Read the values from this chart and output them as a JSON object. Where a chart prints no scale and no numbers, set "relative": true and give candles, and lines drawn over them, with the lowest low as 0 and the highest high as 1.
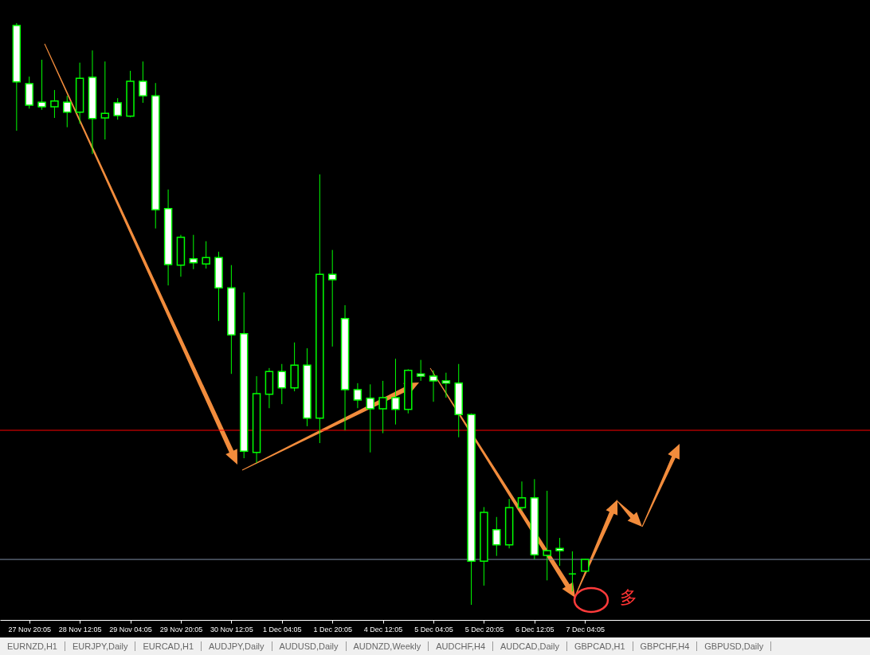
{
  "chart_data": {
    "type": "candlestick",
    "relative": true,
    "categories": [
      null,
      "27 Nov 20:05",
      null,
      null,
      null,
      "28 Nov 12:05",
      null,
      null,
      null,
      "29 Nov 04:05",
      null,
      null,
      null,
      "29 Nov 20:05",
      null,
      null,
      null,
      "30 Nov 12:05",
      null,
      null,
      null,
      "1 Dec 04:05",
      null,
      null,
      null,
      "1 Dec 20:05",
      null,
      null,
      null,
      "4 Dec 12:05",
      null,
      null,
      null,
      "5 Dec 04:05",
      null,
      null,
      null,
      "5 Dec 20:05",
      null,
      null,
      null,
      "6 Dec 12:05",
      null,
      null,
      null,
      "7 Dec 04:05"
    ],
    "ohlc": [
      [
        0.996,
        1.0,
        0.815,
        0.899
      ],
      [
        0.896,
        0.908,
        0.853,
        0.859
      ],
      [
        0.864,
        0.937,
        0.851,
        0.856
      ],
      [
        0.856,
        0.885,
        0.837,
        0.866
      ],
      [
        0.864,
        0.875,
        0.821,
        0.847
      ],
      [
        0.847,
        0.932,
        0.827,
        0.905
      ],
      [
        0.907,
        0.953,
        0.775,
        0.836
      ],
      [
        0.837,
        0.934,
        0.8,
        0.845
      ],
      [
        0.863,
        0.871,
        0.834,
        0.841
      ],
      [
        0.84,
        0.918,
        0.838,
        0.9
      ],
      [
        0.9,
        0.934,
        0.863,
        0.875
      ],
      [
        0.875,
        0.897,
        0.647,
        0.679
      ],
      [
        0.681,
        0.714,
        0.549,
        0.585
      ],
      [
        0.584,
        0.636,
        0.564,
        0.632
      ],
      [
        0.595,
        0.636,
        0.577,
        0.588
      ],
      [
        0.586,
        0.625,
        0.578,
        0.597
      ],
      [
        0.597,
        0.607,
        0.488,
        0.545
      ],
      [
        0.545,
        0.584,
        0.397,
        0.464
      ],
      [
        0.466,
        0.537,
        0.252,
        0.264
      ],
      [
        0.262,
        0.393,
        0.244,
        0.363
      ],
      [
        0.362,
        0.407,
        0.338,
        0.401
      ],
      [
        0.401,
        0.414,
        0.345,
        0.373
      ],
      [
        0.373,
        0.451,
        0.367,
        0.412
      ],
      [
        0.412,
        0.441,
        0.307,
        0.321
      ],
      [
        0.321,
        0.74,
        0.278,
        0.568
      ],
      [
        0.568,
        0.61,
        0.444,
        0.559
      ],
      [
        0.492,
        0.515,
        0.3,
        0.37
      ],
      [
        0.37,
        0.381,
        0.338,
        0.352
      ],
      [
        0.355,
        0.379,
        0.262,
        0.337
      ],
      [
        0.337,
        0.385,
        0.295,
        0.356
      ],
      [
        0.356,
        0.423,
        0.31,
        0.336
      ],
      [
        0.336,
        0.405,
        0.329,
        0.403
      ],
      [
        0.397,
        0.421,
        0.385,
        0.393
      ],
      [
        0.393,
        0.403,
        0.349,
        0.385
      ],
      [
        0.385,
        0.399,
        0.356,
        0.381
      ],
      [
        0.381,
        0.414,
        0.288,
        0.327
      ],
      [
        0.327,
        0.329,
        0.0,
        0.075
      ],
      [
        0.075,
        0.168,
        0.033,
        0.159
      ],
      [
        0.129,
        0.151,
        0.084,
        0.103
      ],
      [
        0.103,
        0.182,
        0.097,
        0.167
      ],
      [
        0.167,
        0.212,
        0.162,
        0.184
      ],
      [
        0.184,
        0.216,
        0.078,
        0.086
      ],
      [
        0.085,
        0.196,
        0.042,
        0.093
      ],
      [
        0.097,
        0.115,
        0.067,
        0.093
      ],
      [
        0.053,
        0.092,
        0.023,
        0.053
      ],
      [
        0.058,
        0.079,
        0.058,
        0.078
      ]
    ],
    "ref_lines": [
      {
        "axis": "y",
        "value": 0.3,
        "color": "#ff0000"
      },
      {
        "axis": "y",
        "value": 0.078,
        "color": "#7f8fa6"
      }
    ],
    "annotations": [
      "多",
      "EURNZD,H1",
      "EURJPY,Daily",
      "EURCAD,H1",
      "AUDJPY,Daily",
      "AUDUSD,Daily",
      "AUDNZD,Weekly",
      "AUDCHF,H4",
      "AUDCAD,Daily",
      "GBPCAD,H1",
      "GBPCHF,H4",
      "GBPUSD,Daily"
    ]
  }
}
